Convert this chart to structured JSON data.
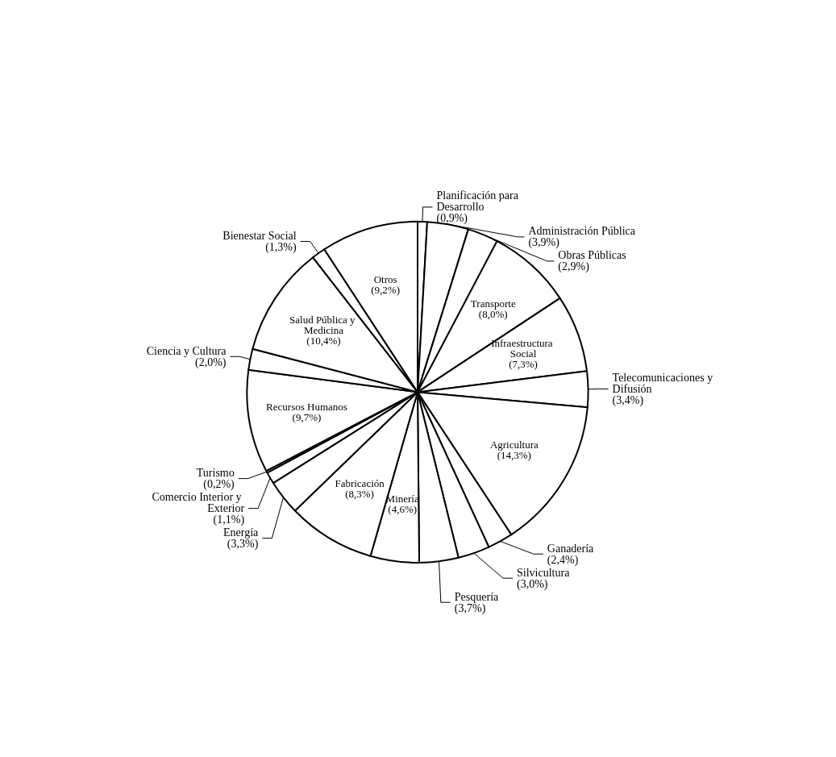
{
  "chart_data": {
    "type": "pie",
    "categories": [
      "Planificación para Desarrollo",
      "Administración Pública",
      "Obras Públicas",
      "Transporte",
      "Infraestructura Social",
      "Telecomunicaciones y Difusión",
      "Agricultura",
      "Ganadería",
      "Silvicultura",
      "Pesquería",
      "Minería",
      "Fabricación",
      "Energía",
      "Comercio Interior y Exterior",
      "Turismo",
      "Recursos Humanos",
      "Ciencia y Cultura",
      "Salud Pública y Medicina",
      "Bienestar Social",
      "Otros"
    ],
    "values": [
      0.9,
      3.9,
      2.9,
      8.0,
      7.3,
      3.4,
      14.3,
      2.4,
      3.0,
      3.7,
      4.6,
      8.3,
      3.3,
      1.1,
      0.2,
      9.7,
      2.0,
      10.4,
      1.3,
      9.2
    ],
    "value_labels": [
      "(0,9%)",
      "(3,9%)",
      "(2,9%)",
      "(8,0%)",
      "(7,3%)",
      "(3,4%)",
      "(14,3%)",
      "(2,4%)",
      "(3,0%)",
      "(3,7%)",
      "(4,6%)",
      "(8,3%)",
      "(3,3%)",
      "(1,1%)",
      "(0,2%)",
      "(9,7%)",
      "(2,0%)",
      "(10,4%)",
      "(1,3%)",
      "(9,2%)"
    ],
    "colors": [
      "#ffffff",
      "#ffffff",
      "#ffffff",
      "#ffffff",
      "#ffffff",
      "#ffffff",
      "#ffffff",
      "#ffffff",
      "#ffffff",
      "#ffffff",
      "#ffffff",
      "#ffffff",
      "#ffffff",
      "#ffffff",
      "#ffffff",
      "#ffffff",
      "#ffffff",
      "#ffffff",
      "#ffffff",
      "#ffffff"
    ],
    "legend": false
  }
}
